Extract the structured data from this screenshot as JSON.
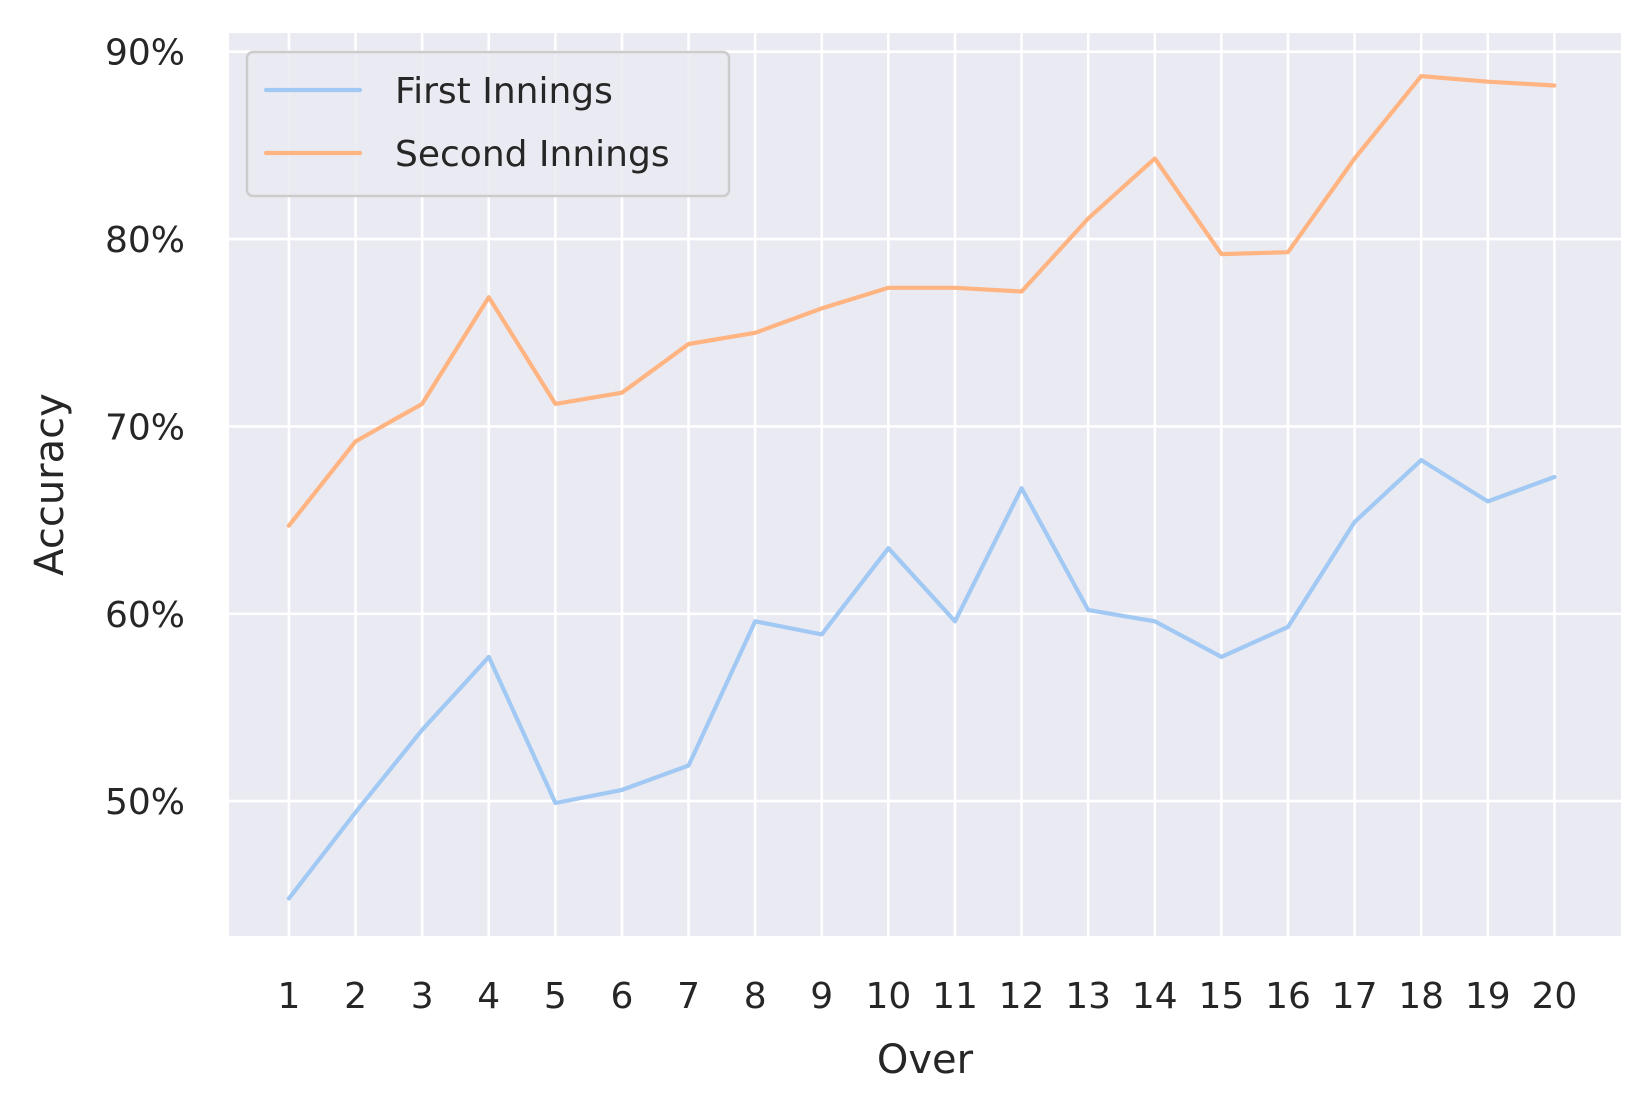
{
  "chart_data": {
    "type": "line",
    "title": "",
    "xlabel": "Over",
    "ylabel": "Accuracy",
    "x": [
      1,
      2,
      3,
      4,
      5,
      6,
      7,
      8,
      9,
      10,
      11,
      12,
      13,
      14,
      15,
      16,
      17,
      18,
      19,
      20
    ],
    "x_tick_labels": [
      "1",
      "2",
      "3",
      "4",
      "5",
      "6",
      "7",
      "8",
      "9",
      "10",
      "11",
      "12",
      "13",
      "14",
      "15",
      "16",
      "17",
      "18",
      "19",
      "20"
    ],
    "y_ticks": [
      0.5,
      0.6,
      0.7,
      0.8,
      0.9
    ],
    "y_tick_labels": [
      "50%",
      "60%",
      "70%",
      "80%",
      "90%"
    ],
    "xlim": [
      0.1,
      21.0
    ],
    "ylim": [
      0.428,
      0.91
    ],
    "grid": true,
    "legend_position": "upper-left",
    "background_color": "#EAEAF2",
    "grid_color": "#FFFFFF",
    "series": [
      {
        "name": "First Innings",
        "color": "#A1C9F4",
        "values": [
          0.448,
          0.494,
          0.538,
          0.577,
          0.499,
          0.506,
          0.519,
          0.596,
          0.589,
          0.635,
          0.596,
          0.667,
          0.602,
          0.596,
          0.577,
          0.593,
          0.649,
          0.682,
          0.66,
          0.673
        ]
      },
      {
        "name": "Second Innings",
        "color": "#FFB482",
        "values": [
          0.647,
          0.692,
          0.712,
          0.769,
          0.712,
          0.718,
          0.744,
          0.75,
          0.763,
          0.774,
          0.774,
          0.772,
          0.811,
          0.843,
          0.792,
          0.793,
          0.843,
          0.887,
          0.884,
          0.882
        ]
      }
    ]
  }
}
